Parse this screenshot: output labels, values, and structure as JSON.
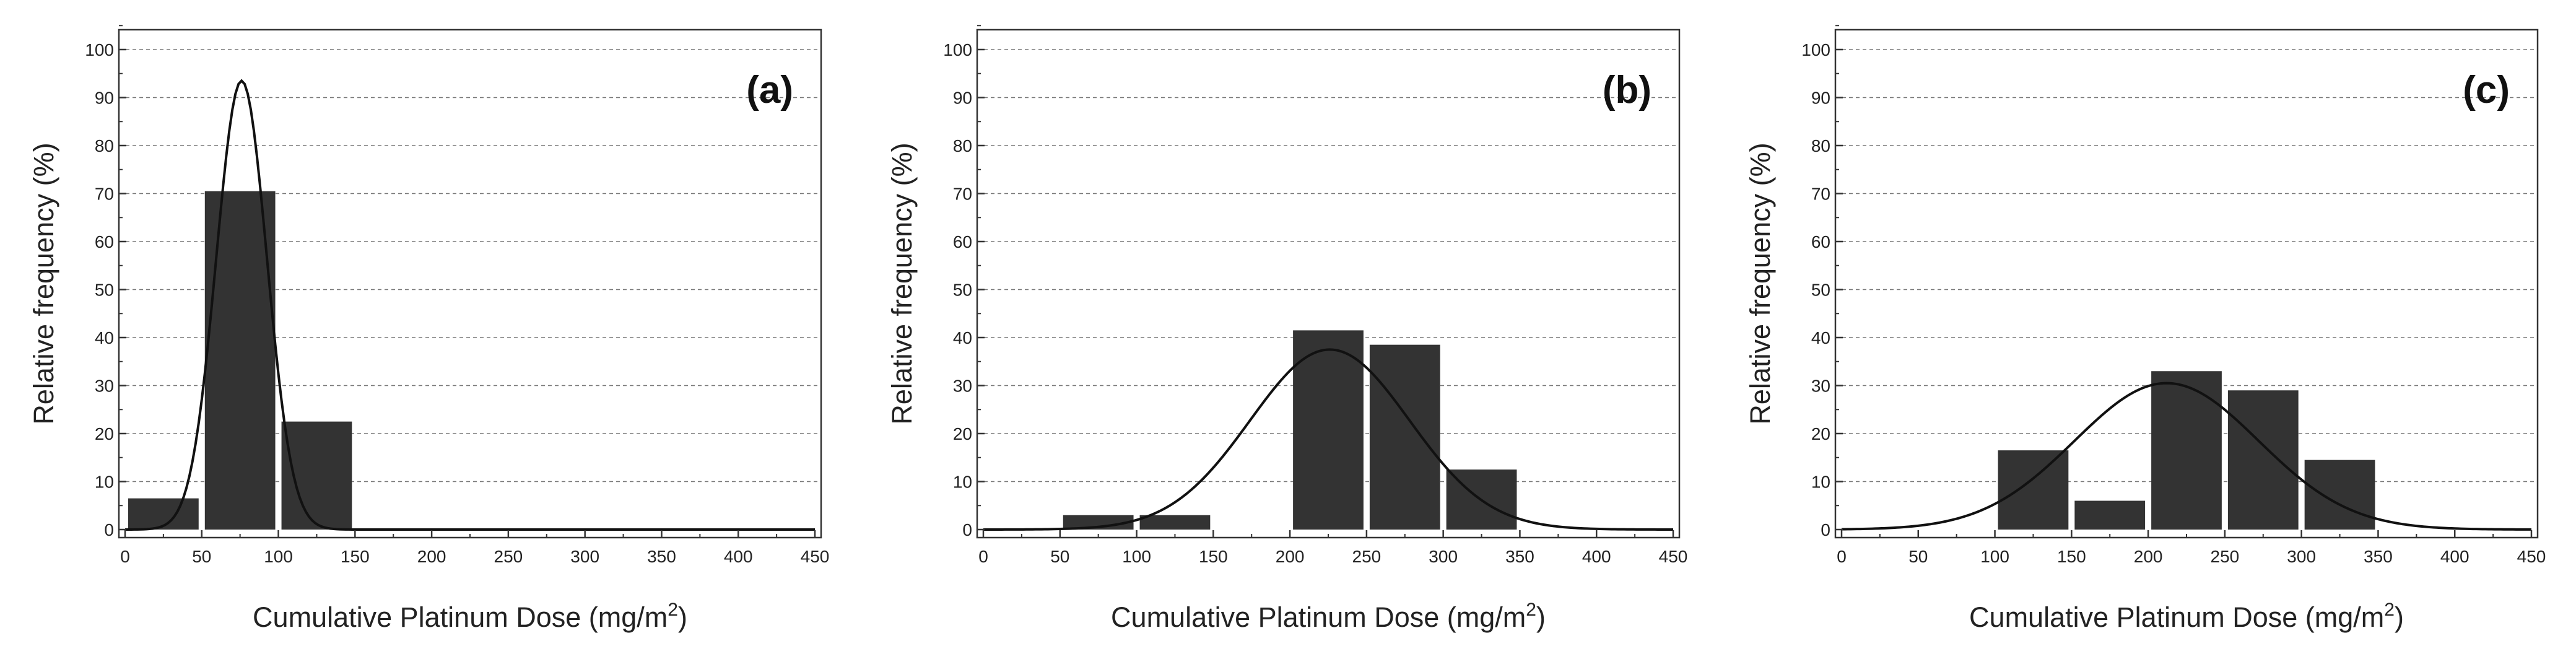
{
  "chart_data": [
    {
      "type": "bar",
      "panel_label": "(a)",
      "xlabel": "Cumulative Platinum Dose (mg/m",
      "xlabel_sup": "2",
      "xlabel_end": ")",
      "ylabel": "Relative frequency (%)",
      "xlim": [
        0,
        450
      ],
      "ylim": [
        0,
        100
      ],
      "xticks": [
        "0",
        "50",
        "100",
        "150",
        "200",
        "250",
        "300",
        "350",
        "400",
        "450"
      ],
      "yticks": [
        "0",
        "10",
        "20",
        "30",
        "40",
        "50",
        "60",
        "70",
        "80",
        "90",
        "100"
      ],
      "grid": true,
      "bin_width": 50,
      "bins": [
        {
          "x0": 0,
          "x1": 50,
          "value": 6.5
        },
        {
          "x0": 50,
          "x1": 100,
          "value": 70.5
        },
        {
          "x0": 100,
          "x1": 150,
          "value": 22.5
        }
      ],
      "fit_curve": {
        "type": "normal",
        "mean": 76,
        "peak": 93.5,
        "sd": 16.5
      }
    },
    {
      "type": "bar",
      "panel_label": "(b)",
      "xlabel": "Cumulative Platinum Dose (mg/m",
      "xlabel_sup": "2",
      "xlabel_end": ")",
      "ylabel": "Relative frequency (%)",
      "xlim": [
        0,
        450
      ],
      "ylim": [
        0,
        100
      ],
      "xticks": [
        "0",
        "50",
        "100",
        "150",
        "200",
        "250",
        "300",
        "350",
        "400",
        "450"
      ],
      "yticks": [
        "0",
        "10",
        "20",
        "30",
        "40",
        "50",
        "60",
        "70",
        "80",
        "90",
        "100"
      ],
      "grid": true,
      "bin_width": 50,
      "bins": [
        {
          "x0": 50,
          "x1": 100,
          "value": 3
        },
        {
          "x0": 100,
          "x1": 150,
          "value": 3
        },
        {
          "x0": 200,
          "x1": 250,
          "value": 41.5
        },
        {
          "x0": 250,
          "x1": 300,
          "value": 38.5
        },
        {
          "x0": 300,
          "x1": 350,
          "value": 12.5
        }
      ],
      "fit_curve": {
        "type": "normal",
        "mean": 226,
        "peak": 37.5,
        "sd": 52
      }
    },
    {
      "type": "bar",
      "panel_label": "(c)",
      "xlabel": "Cumulative Platinum Dose (mg/m",
      "xlabel_sup": "2",
      "xlabel_end": ")",
      "ylabel": "Relative frequency (%)",
      "xlim": [
        0,
        450
      ],
      "ylim": [
        0,
        100
      ],
      "xticks": [
        "0",
        "50",
        "100",
        "150",
        "200",
        "250",
        "300",
        "350",
        "400",
        "450"
      ],
      "yticks": [
        "0",
        "10",
        "20",
        "30",
        "40",
        "50",
        "60",
        "70",
        "80",
        "90",
        "100"
      ],
      "grid": true,
      "bin_width": 50,
      "bins": [
        {
          "x0": 100,
          "x1": 150,
          "value": 16.5
        },
        {
          "x0": 150,
          "x1": 200,
          "value": 6
        },
        {
          "x0": 200,
          "x1": 250,
          "value": 33
        },
        {
          "x0": 250,
          "x1": 300,
          "value": 29
        },
        {
          "x0": 300,
          "x1": 350,
          "value": 14.5
        }
      ],
      "fit_curve": {
        "type": "normal",
        "mean": 212,
        "peak": 30.5,
        "sd": 60
      }
    }
  ],
  "colors": {
    "bar": "#333333",
    "curve": "#111111",
    "grid": "#7a7a7a"
  }
}
